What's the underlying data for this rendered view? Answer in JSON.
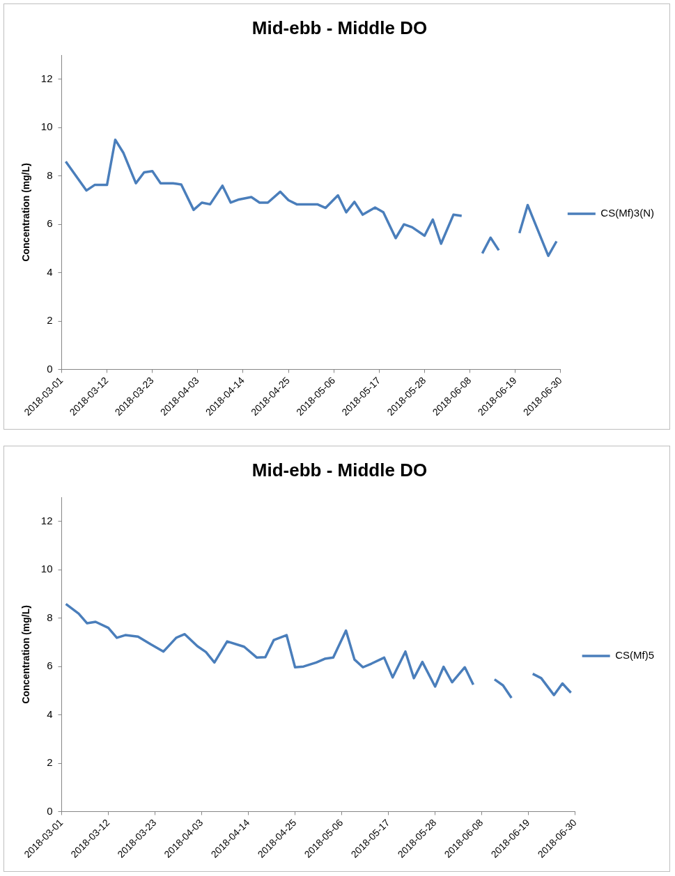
{
  "chart_data": [
    {
      "type": "line",
      "title": "Mid-ebb - Middle DO",
      "ylabel": "Concentration (mg/L)",
      "legend": "right",
      "marker": "none",
      "x": [
        "2018-03-02",
        "2018-03-07",
        "2018-03-09",
        "2018-03-12",
        "2018-03-14",
        "2018-03-16",
        "2018-03-19",
        "2018-03-21",
        "2018-03-23",
        "2018-03-25",
        "2018-03-28",
        "2018-03-30",
        "2018-04-02",
        "2018-04-04",
        "2018-04-06",
        "2018-04-09",
        "2018-04-11",
        "2018-04-13",
        "2018-04-16",
        "2018-04-18",
        "2018-04-20",
        "2018-04-23",
        "2018-04-25",
        "2018-04-27",
        "2018-04-30",
        "2018-05-02",
        "2018-05-04",
        "2018-05-07",
        "2018-05-09",
        "2018-05-11",
        "2018-05-13",
        "2018-05-16",
        "2018-05-18",
        "2018-05-21",
        "2018-05-23",
        "2018-05-25",
        "2018-05-28",
        "2018-05-30",
        "2018-06-01",
        "2018-06-04",
        "2018-06-06",
        "2018-06-08",
        "2018-06-11",
        "2018-06-13",
        "2018-06-15",
        "2018-06-18",
        "2018-06-20",
        "2018-06-22",
        "2018-06-27",
        "2018-06-29"
      ],
      "series": [
        {
          "name": "CS(Mf)3(N)",
          "color": "#4a7ebb",
          "values": [
            8.6,
            7.4,
            7.63,
            7.63,
            9.5,
            8.95,
            7.7,
            8.15,
            8.2,
            7.7,
            7.7,
            7.65,
            6.6,
            6.9,
            6.83,
            7.6,
            6.9,
            7.03,
            7.13,
            6.9,
            6.9,
            7.35,
            7.0,
            6.83,
            6.83,
            6.83,
            6.68,
            7.2,
            6.5,
            6.93,
            6.4,
            6.7,
            6.5,
            5.43,
            6.0,
            5.88,
            5.53,
            6.2,
            5.2,
            6.4,
            6.35,
            null,
            4.8,
            5.45,
            4.93,
            null,
            5.64,
            6.8,
            4.7,
            5.3
          ]
        }
      ],
      "xlim": [
        "2018-03-01",
        "2018-06-30"
      ],
      "xticks": [
        "2018-03-01",
        "2018-03-12",
        "2018-03-23",
        "2018-04-03",
        "2018-04-14",
        "2018-04-25",
        "2018-05-06",
        "2018-05-17",
        "2018-05-28",
        "2018-06-08",
        "2018-06-19",
        "2018-06-30"
      ],
      "ylim": [
        0,
        13
      ],
      "yticks": [
        0,
        2,
        4,
        6,
        8,
        10,
        12
      ]
    },
    {
      "type": "line",
      "title": "Mid-ebb - Middle DO",
      "ylabel": "Concentration (mg/L)",
      "legend": "right",
      "marker": "none",
      "x": [
        "2018-03-02",
        "2018-03-05",
        "2018-03-07",
        "2018-03-09",
        "2018-03-12",
        "2018-03-14",
        "2018-03-16",
        "2018-03-19",
        "2018-03-22",
        "2018-03-25",
        "2018-03-28",
        "2018-03-30",
        "2018-04-02",
        "2018-04-04",
        "2018-04-06",
        "2018-04-09",
        "2018-04-13",
        "2018-04-16",
        "2018-04-18",
        "2018-04-20",
        "2018-04-23",
        "2018-04-25",
        "2018-04-27",
        "2018-04-30",
        "2018-05-02",
        "2018-05-04",
        "2018-05-07",
        "2018-05-09",
        "2018-05-11",
        "2018-05-13",
        "2018-05-16",
        "2018-05-18",
        "2018-05-21",
        "2018-05-23",
        "2018-05-25",
        "2018-05-28",
        "2018-05-30",
        "2018-06-01",
        "2018-06-04",
        "2018-06-06",
        "2018-06-08",
        "2018-06-11",
        "2018-06-13",
        "2018-06-15",
        "2018-06-18",
        "2018-06-20",
        "2018-06-22",
        "2018-06-25",
        "2018-06-27",
        "2018-06-29"
      ],
      "series": [
        {
          "name": "CS(Mf)5",
          "color": "#4a7ebb",
          "values": [
            8.59,
            8.19,
            7.79,
            7.85,
            7.6,
            7.19,
            7.3,
            7.24,
            6.92,
            6.62,
            7.19,
            7.34,
            6.84,
            6.6,
            6.17,
            7.04,
            6.82,
            6.37,
            6.39,
            7.1,
            7.3,
            5.97,
            6.0,
            6.17,
            6.32,
            6.37,
            7.49,
            6.29,
            5.97,
            6.12,
            6.37,
            5.55,
            6.62,
            5.52,
            6.19,
            5.17,
            5.99,
            5.35,
            5.97,
            5.25,
            null,
            5.47,
            5.22,
            4.7,
            null,
            5.7,
            5.52,
            4.82,
            5.3,
            4.92
          ]
        }
      ],
      "xlim": [
        "2018-03-01",
        "2018-06-30"
      ],
      "xticks": [
        "2018-03-01",
        "2018-03-12",
        "2018-03-23",
        "2018-04-03",
        "2018-04-14",
        "2018-04-25",
        "2018-05-06",
        "2018-05-17",
        "2018-05-28",
        "2018-06-08",
        "2018-06-19",
        "2018-06-30"
      ],
      "ylim": [
        0,
        13
      ],
      "yticks": [
        0,
        2,
        4,
        6,
        8,
        10,
        12
      ]
    }
  ]
}
